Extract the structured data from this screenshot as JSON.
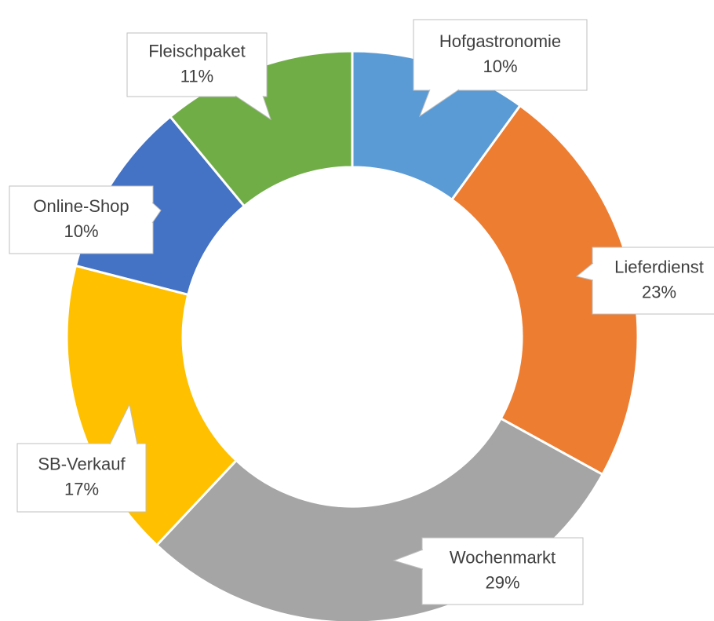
{
  "chart_data": {
    "type": "donut",
    "categories": [
      "Hofgastronomie",
      "Lieferdienst",
      "Wochenmarkt",
      "SB-Verkauf",
      "Online-Shop",
      "Fleischpaket"
    ],
    "values": [
      10,
      23,
      29,
      17,
      10,
      11
    ],
    "value_labels": [
      "10%",
      "23%",
      "29%",
      "17%",
      "10%",
      "11%"
    ],
    "colors": [
      "#5b9bd5",
      "#ed7d31",
      "#a5a5a5",
      "#ffc000",
      "#4472c4",
      "#70ad47"
    ]
  }
}
